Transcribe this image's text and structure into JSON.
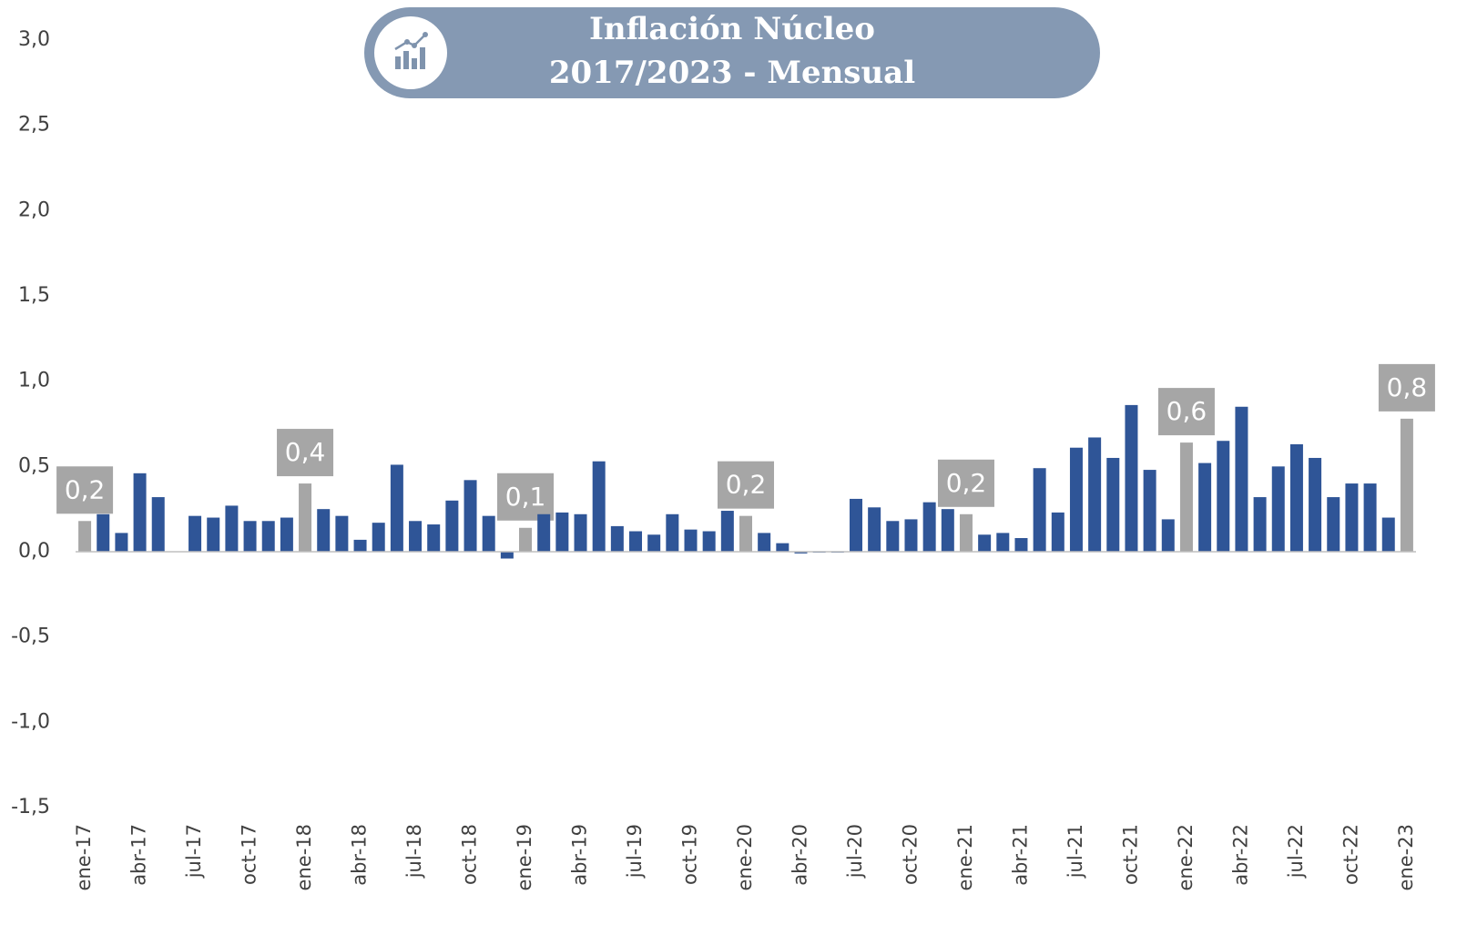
{
  "chart_data": {
    "type": "bar",
    "title": [
      "Inflación Núcleo",
      "2017/2023 - Mensual"
    ],
    "categories": [
      "ene-17",
      null,
      null,
      "abr-17",
      null,
      null,
      "jul-17",
      null,
      null,
      "oct-17",
      null,
      null,
      "ene-18",
      null,
      null,
      "abr-18",
      null,
      null,
      "jul-18",
      null,
      null,
      "oct-18",
      null,
      null,
      "ene-19",
      null,
      null,
      "abr-19",
      null,
      null,
      "jul-19",
      null,
      null,
      "oct-19",
      null,
      null,
      "ene-20",
      null,
      null,
      "abr-20",
      null,
      null,
      "jul-20",
      null,
      null,
      "oct-20",
      null,
      null,
      "ene-21",
      null,
      null,
      "abr-21",
      null,
      null,
      "jul-21",
      null,
      null,
      "oct-21",
      null,
      null,
      "ene-22",
      null,
      null,
      "abr-22",
      null,
      null,
      "jul-22",
      null,
      null,
      "oct-22",
      null,
      null,
      "ene-23"
    ],
    "values": [
      0.18,
      0.22,
      0.11,
      0.46,
      0.32,
      null,
      0.21,
      0.2,
      0.27,
      0.18,
      0.18,
      0.2,
      0.4,
      0.25,
      0.21,
      0.07,
      0.17,
      0.51,
      0.18,
      0.16,
      0.3,
      0.42,
      0.21,
      -0.04,
      0.14,
      0.22,
      0.23,
      0.22,
      0.53,
      0.15,
      0.12,
      0.1,
      0.22,
      0.13,
      0.12,
      0.24,
      0.21,
      0.11,
      0.05,
      -0.01,
      0,
      0,
      0.31,
      0.26,
      0.18,
      0.19,
      0.29,
      0.25,
      0.22,
      0.1,
      0.11,
      0.08,
      0.49,
      0.23,
      0.61,
      0.67,
      0.55,
      0.86,
      0.48,
      0.19,
      0.64,
      0.52,
      0.65,
      0.85,
      0.32,
      0.5,
      0.63,
      0.55,
      0.32,
      0.4,
      0.4,
      0.2,
      0.78
    ],
    "value_labels": [
      "0,2",
      null,
      null,
      null,
      null,
      null,
      null,
      null,
      null,
      null,
      null,
      null,
      "0,4",
      null,
      null,
      null,
      null,
      null,
      null,
      null,
      null,
      null,
      null,
      null,
      "0,1",
      null,
      null,
      null,
      null,
      null,
      null,
      null,
      null,
      null,
      null,
      null,
      "0,2",
      null,
      null,
      null,
      null,
      null,
      null,
      null,
      null,
      null,
      null,
      null,
      "0,2",
      null,
      null,
      null,
      null,
      null,
      null,
      null,
      null,
      null,
      null,
      null,
      "0,6",
      null,
      null,
      null,
      null,
      null,
      null,
      null,
      null,
      null,
      null,
      null,
      "0,8"
    ],
    "color": "#2f5597",
    "highlight_color": "#a6a6a6",
    "ylim": [
      -1.5,
      3.0
    ],
    "yticks": [
      {
        "value": -1.5,
        "label": "-1,5"
      },
      {
        "value": -1.0,
        "label": "-1,0"
      },
      {
        "value": -0.5,
        "label": "-0,5"
      },
      {
        "value": 0,
        "label": "0,0"
      },
      {
        "value": 0.5,
        "label": "0,5"
      },
      {
        "value": 1.0,
        "label": "1,0"
      },
      {
        "value": 1.5,
        "label": "1,5"
      },
      {
        "value": 2.0,
        "label": "2,0"
      },
      {
        "value": 2.5,
        "label": "2,5"
      },
      {
        "value": 3.0,
        "label": "3,0"
      }
    ],
    "grid": false
  }
}
